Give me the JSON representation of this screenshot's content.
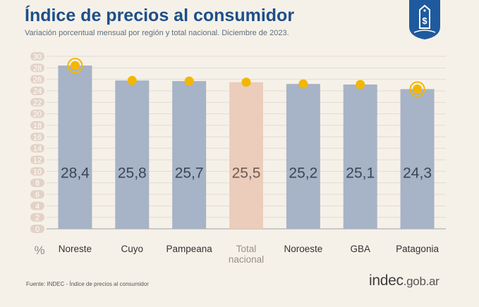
{
  "header": {
    "title": "Índice de precios al consumidor",
    "subtitle": "Variación porcentual mensual por región y total nacional. Diciembre de 2023."
  },
  "badge": {
    "icon": "price-tag-dollar-icon",
    "color": "#1f5a9e"
  },
  "chart_data": {
    "type": "bar",
    "categories": [
      "Noreste",
      "Cuyo",
      "Pampeana",
      "Total nacional",
      "Noroeste",
      "GBA",
      "Patagonia"
    ],
    "category_lines": [
      [
        "Noreste"
      ],
      [
        "Cuyo"
      ],
      [
        "Pampeana"
      ],
      [
        "Total",
        "nacional"
      ],
      [
        "Noroeste"
      ],
      [
        "GBA"
      ],
      [
        "Patagonia"
      ]
    ],
    "values": [
      28.4,
      25.8,
      25.7,
      25.5,
      25.2,
      25.1,
      24.3
    ],
    "value_labels": [
      "28,4",
      "25,8",
      "25,7",
      "25,5",
      "25,2",
      "25,1",
      "24,3"
    ],
    "highlight_index": [
      0,
      6
    ],
    "ylabel": "%",
    "ylim": [
      0,
      30
    ],
    "yticks": [
      0,
      2,
      4,
      6,
      8,
      10,
      12,
      14,
      16,
      18,
      20,
      22,
      24,
      26,
      28,
      30
    ],
    "grid": true,
    "colors": {
      "bar": "#a7b3c6",
      "total_bar": "#ecccbb",
      "marker": "#f2b705",
      "tick_pill": "#e3d2c6",
      "label": "#333333",
      "total_label": "#9a8f86"
    }
  },
  "footer": {
    "source": "Fuente: INDEC - Índice de precios al consumidor",
    "logo_main": "indec",
    "logo_domain": ".gob.ar"
  }
}
